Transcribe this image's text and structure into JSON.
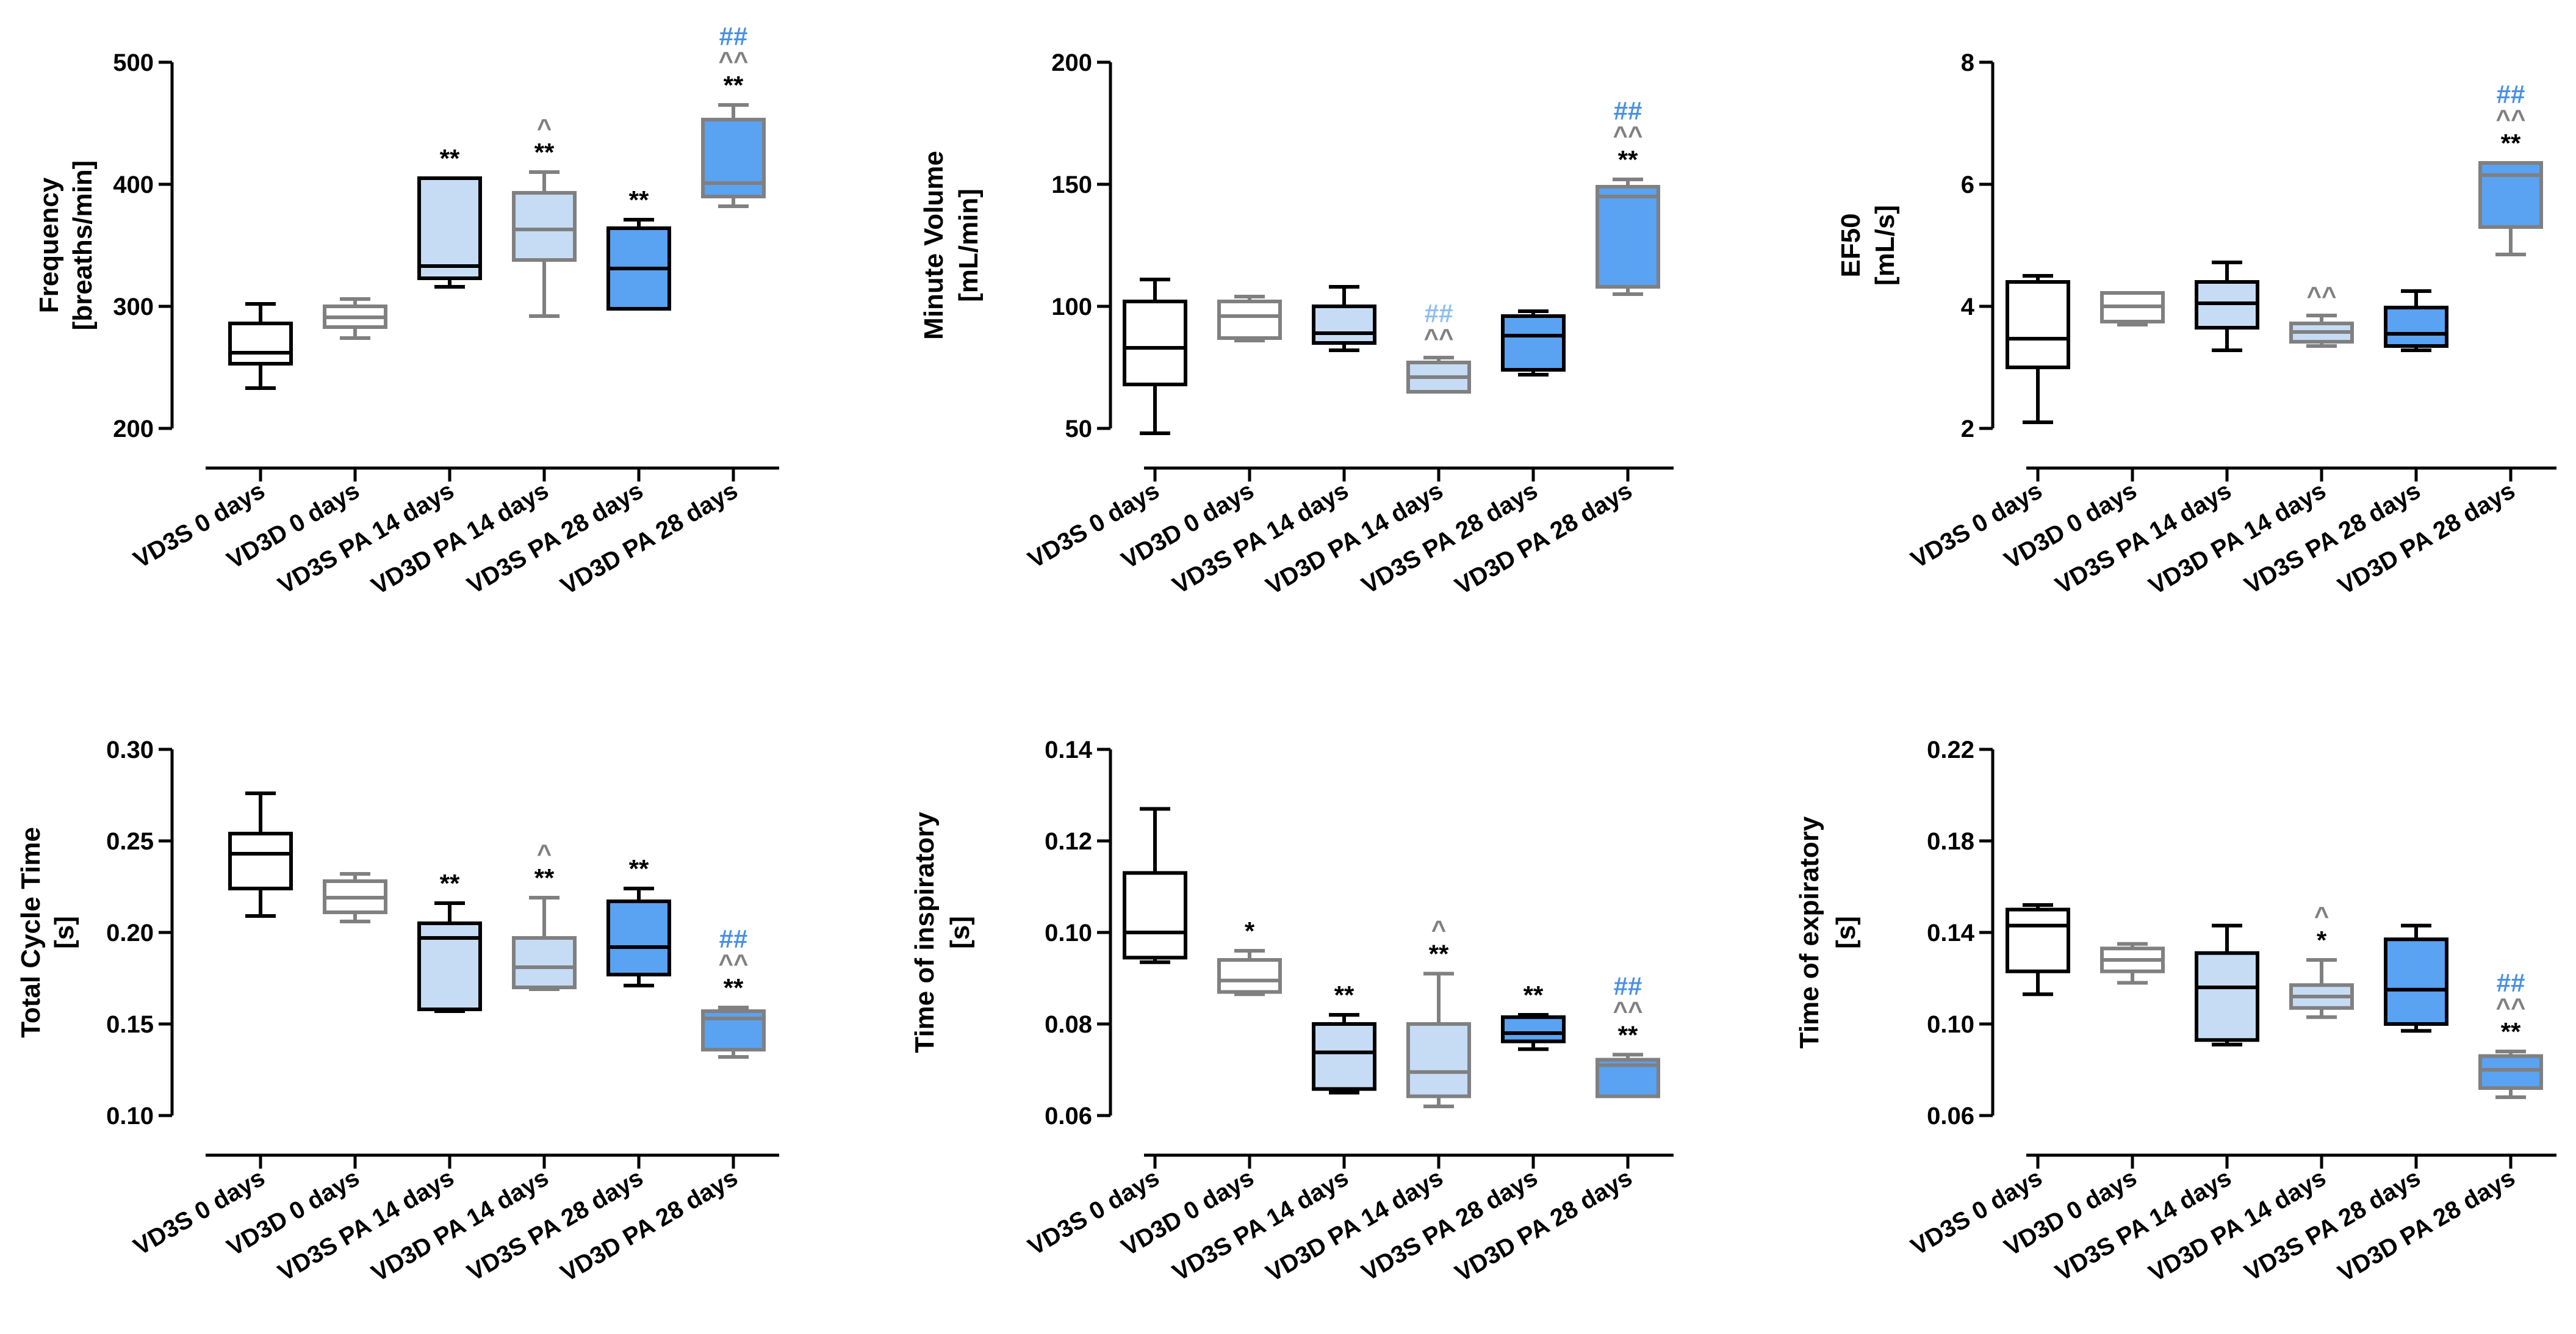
{
  "chart_data": [
    {
      "type": "box",
      "ylabel": [
        "Frequency",
        "[breaths/min]"
      ],
      "ylim": [
        200,
        500
      ],
      "yticks": [
        200,
        300,
        400,
        500
      ],
      "categories": [
        "VD3S 0 days",
        "VD3D 0 days",
        "VD3S PA 14 days",
        "VD3D PA 14 days",
        "VD3S PA 28 days",
        "VD3D PA 28 days"
      ],
      "boxes": [
        {
          "min": 233,
          "q1": 253,
          "median": 262,
          "q3": 286,
          "max": 302,
          "style": "s0",
          "annotations": []
        },
        {
          "min": 274,
          "q1": 283,
          "median": 291,
          "q3": 300,
          "max": 306,
          "style": "d0",
          "annotations": []
        },
        {
          "min": 316,
          "q1": 323,
          "median": 333,
          "q3": 405,
          "max": 405,
          "style": "s14",
          "annotations": [
            {
              "text": "**",
              "color": "#000000"
            }
          ]
        },
        {
          "min": 292,
          "q1": 338,
          "median": 363,
          "q3": 393,
          "max": 410,
          "style": "d14",
          "annotations": [
            {
              "text": "**",
              "color": "#000000"
            },
            {
              "text": "^",
              "color": "#808080"
            }
          ]
        },
        {
          "min": 298,
          "q1": 298,
          "median": 331,
          "q3": 364,
          "max": 371,
          "style": "s28",
          "annotations": [
            {
              "text": "**",
              "color": "#000000"
            }
          ]
        },
        {
          "min": 382,
          "q1": 390,
          "median": 401,
          "q3": 453,
          "max": 465,
          "style": "d28",
          "annotations": [
            {
              "text": "**",
              "color": "#000000"
            },
            {
              "text": "^^",
              "color": "#808080"
            },
            {
              "text": "##",
              "color": "#4a90e2"
            }
          ]
        }
      ]
    },
    {
      "type": "box",
      "ylabel": [
        "Minute Volume",
        "[mL/min]"
      ],
      "ylim": [
        50,
        200
      ],
      "yticks": [
        50,
        100,
        150,
        200
      ],
      "categories": [
        "VD3S 0 days",
        "VD3D 0 days",
        "VD3S PA 14 days",
        "VD3D PA 14 days",
        "VD3S PA 28 days",
        "VD3D PA 28 days"
      ],
      "boxes": [
        {
          "min": 48,
          "q1": 68,
          "median": 83,
          "q3": 102,
          "max": 111,
          "style": "s0",
          "annotations": []
        },
        {
          "min": 86,
          "q1": 87,
          "median": 96,
          "q3": 102,
          "max": 104,
          "style": "d0",
          "annotations": []
        },
        {
          "min": 82,
          "q1": 85,
          "median": 89,
          "q3": 100,
          "max": 108,
          "style": "s14",
          "annotations": []
        },
        {
          "min": 65,
          "q1": 65,
          "median": 71,
          "q3": 77,
          "max": 79,
          "style": "d14",
          "annotations": [
            {
              "text": "^^",
              "color": "#808080"
            },
            {
              "text": "##",
              "color": "#8fbef0"
            }
          ]
        },
        {
          "min": 72,
          "q1": 74,
          "median": 88,
          "q3": 96,
          "max": 98,
          "style": "s28",
          "annotations": []
        },
        {
          "min": 105,
          "q1": 108,
          "median": 145,
          "q3": 149,
          "max": 152,
          "style": "d28",
          "annotations": [
            {
              "text": "**",
              "color": "#000000"
            },
            {
              "text": "^^",
              "color": "#808080"
            },
            {
              "text": "##",
              "color": "#4a90e2"
            }
          ]
        }
      ]
    },
    {
      "type": "box",
      "ylabel": [
        "EF50",
        "[mL/s]"
      ],
      "ylim": [
        2,
        8
      ],
      "yticks": [
        2,
        4,
        6,
        8
      ],
      "categories": [
        "VD3S 0 days",
        "VD3D 0 days",
        "VD3S PA 14 days",
        "VD3D PA 14 days",
        "VD3S PA 28 days",
        "VD3D PA 28 days"
      ],
      "boxes": [
        {
          "min": 2.1,
          "q1": 3.0,
          "median": 3.47,
          "q3": 4.4,
          "max": 4.5,
          "style": "s0",
          "annotations": []
        },
        {
          "min": 3.7,
          "q1": 3.75,
          "median": 4.0,
          "q3": 4.22,
          "max": 4.22,
          "style": "d0",
          "annotations": []
        },
        {
          "min": 3.28,
          "q1": 3.65,
          "median": 4.05,
          "q3": 4.4,
          "max": 4.72,
          "style": "s14",
          "annotations": []
        },
        {
          "min": 3.35,
          "q1": 3.42,
          "median": 3.58,
          "q3": 3.72,
          "max": 3.85,
          "style": "d14",
          "annotations": [
            {
              "text": "^^",
              "color": "#808080"
            }
          ]
        },
        {
          "min": 3.28,
          "q1": 3.35,
          "median": 3.55,
          "q3": 3.98,
          "max": 4.25,
          "style": "s28",
          "annotations": []
        },
        {
          "min": 4.85,
          "q1": 5.3,
          "median": 6.15,
          "q3": 6.35,
          "max": 6.35,
          "style": "d28",
          "annotations": [
            {
              "text": "**",
              "color": "#000000"
            },
            {
              "text": "^^",
              "color": "#808080"
            },
            {
              "text": "##",
              "color": "#4a90e2"
            }
          ]
        }
      ]
    },
    {
      "type": "box",
      "ylabel": [
        "Total Cycle Time",
        "[s]"
      ],
      "ylim": [
        0.1,
        0.3
      ],
      "yticks": [
        0.1,
        0.15,
        0.2,
        0.25,
        0.3
      ],
      "tickDecimals": 2,
      "categories": [
        "VD3S 0 days",
        "VD3D 0 days",
        "VD3S PA 14 days",
        "VD3D PA 14 days",
        "VD3S PA 28 days",
        "VD3D PA 28 days"
      ],
      "boxes": [
        {
          "min": 0.209,
          "q1": 0.224,
          "median": 0.243,
          "q3": 0.254,
          "max": 0.276,
          "style": "s0",
          "annotations": []
        },
        {
          "min": 0.206,
          "q1": 0.211,
          "median": 0.219,
          "q3": 0.228,
          "max": 0.232,
          "style": "d0",
          "annotations": []
        },
        {
          "min": 0.157,
          "q1": 0.158,
          "median": 0.197,
          "q3": 0.205,
          "max": 0.216,
          "style": "s14",
          "annotations": [
            {
              "text": "**",
              "color": "#000000"
            }
          ]
        },
        {
          "min": 0.169,
          "q1": 0.17,
          "median": 0.181,
          "q3": 0.197,
          "max": 0.219,
          "style": "d14",
          "annotations": [
            {
              "text": "**",
              "color": "#000000"
            },
            {
              "text": "^",
              "color": "#808080"
            }
          ]
        },
        {
          "min": 0.171,
          "q1": 0.177,
          "median": 0.192,
          "q3": 0.217,
          "max": 0.224,
          "style": "s28",
          "annotations": [
            {
              "text": "**",
              "color": "#000000"
            }
          ]
        },
        {
          "min": 0.132,
          "q1": 0.136,
          "median": 0.153,
          "q3": 0.157,
          "max": 0.159,
          "style": "d28",
          "annotations": [
            {
              "text": "**",
              "color": "#000000"
            },
            {
              "text": "^^",
              "color": "#808080"
            },
            {
              "text": "##",
              "color": "#4a90e2"
            }
          ]
        }
      ]
    },
    {
      "type": "box",
      "ylabel": [
        "Time of inspiratory",
        "[s]"
      ],
      "ylim": [
        0.06,
        0.14
      ],
      "yticks": [
        0.06,
        0.08,
        0.1,
        0.12,
        0.14
      ],
      "tickDecimals": 2,
      "categories": [
        "VD3S 0 days",
        "VD3D 0 days",
        "VD3S PA 14 days",
        "VD3D PA 14 days",
        "VD3S PA 28 days",
        "VD3D PA 28 days"
      ],
      "boxes": [
        {
          "min": 0.0935,
          "q1": 0.0945,
          "median": 0.1,
          "q3": 0.113,
          "max": 0.127,
          "style": "s0",
          "annotations": []
        },
        {
          "min": 0.0865,
          "q1": 0.087,
          "median": 0.0895,
          "q3": 0.094,
          "max": 0.096,
          "style": "d0",
          "annotations": [
            {
              "text": "*",
              "color": "#000000"
            }
          ]
        },
        {
          "min": 0.065,
          "q1": 0.0658,
          "median": 0.0738,
          "q3": 0.08,
          "max": 0.082,
          "style": "s14",
          "annotations": [
            {
              "text": "**",
              "color": "#000000"
            }
          ]
        },
        {
          "min": 0.062,
          "q1": 0.0642,
          "median": 0.0695,
          "q3": 0.08,
          "max": 0.091,
          "style": "d14",
          "annotations": [
            {
              "text": "**",
              "color": "#000000"
            },
            {
              "text": "^",
              "color": "#808080"
            }
          ]
        },
        {
          "min": 0.0745,
          "q1": 0.0762,
          "median": 0.078,
          "q3": 0.0815,
          "max": 0.082,
          "style": "s28",
          "annotations": [
            {
              "text": "**",
              "color": "#000000"
            }
          ]
        },
        {
          "min": 0.0642,
          "q1": 0.0642,
          "median": 0.071,
          "q3": 0.0722,
          "max": 0.0733,
          "style": "d28",
          "annotations": [
            {
              "text": "**",
              "color": "#000000"
            },
            {
              "text": "^^",
              "color": "#808080"
            },
            {
              "text": "##",
              "color": "#4a90e2"
            }
          ]
        }
      ]
    },
    {
      "type": "box",
      "ylabel": [
        "Time of expiratory",
        "[s]"
      ],
      "ylim": [
        0.06,
        0.22
      ],
      "yticks": [
        0.06,
        0.1,
        0.14,
        0.18,
        0.22
      ],
      "tickDecimals": 2,
      "categories": [
        "VD3S 0 days",
        "VD3D 0 days",
        "VD3S PA 14 days",
        "VD3D PA 14 days",
        "VD3S PA 28 days",
        "VD3D PA 28 days"
      ],
      "boxes": [
        {
          "min": 0.113,
          "q1": 0.123,
          "median": 0.143,
          "q3": 0.15,
          "max": 0.152,
          "style": "s0",
          "annotations": []
        },
        {
          "min": 0.118,
          "q1": 0.123,
          "median": 0.128,
          "q3": 0.133,
          "max": 0.135,
          "style": "d0",
          "annotations": []
        },
        {
          "min": 0.091,
          "q1": 0.093,
          "median": 0.116,
          "q3": 0.131,
          "max": 0.143,
          "style": "s14",
          "annotations": []
        },
        {
          "min": 0.103,
          "q1": 0.107,
          "median": 0.112,
          "q3": 0.117,
          "max": 0.128,
          "style": "d14",
          "annotations": [
            {
              "text": "*",
              "color": "#000000"
            },
            {
              "text": "^",
              "color": "#808080"
            }
          ]
        },
        {
          "min": 0.097,
          "q1": 0.1,
          "median": 0.115,
          "q3": 0.137,
          "max": 0.143,
          "style": "s28",
          "annotations": []
        },
        {
          "min": 0.068,
          "q1": 0.072,
          "median": 0.08,
          "q3": 0.086,
          "max": 0.088,
          "style": "d28",
          "annotations": [
            {
              "text": "**",
              "color": "#000000"
            },
            {
              "text": "^^",
              "color": "#808080"
            },
            {
              "text": "##",
              "color": "#4a90e2"
            }
          ]
        }
      ]
    }
  ],
  "styles": {
    "s0": {
      "fill": "#ffffff",
      "stroke": "#000000"
    },
    "d0": {
      "fill": "#ffffff",
      "stroke": "#808080"
    },
    "s14": {
      "fill": "#c6dcf5",
      "stroke": "#000000"
    },
    "d14": {
      "fill": "#c6dcf5",
      "stroke": "#808080"
    },
    "s28": {
      "fill": "#5aa2f2",
      "stroke": "#000000"
    },
    "d28": {
      "fill": "#5aa2f2",
      "stroke": "#808080"
    }
  }
}
